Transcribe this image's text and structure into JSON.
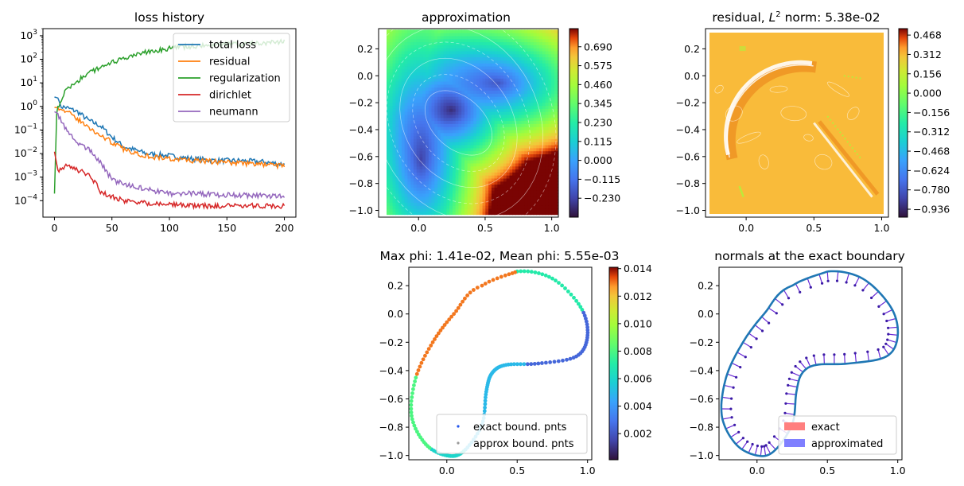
{
  "chart_data": [
    {
      "type": "line",
      "title": "loss history",
      "yscale": "log",
      "xlim": [
        -10,
        210
      ],
      "ylim": [
        2e-05,
        2000
      ],
      "xticks": [
        "0",
        "50",
        "100",
        "150",
        "200"
      ],
      "yticks": [
        "10^-4",
        "10^-3",
        "10^-2",
        "10^-1",
        "10^0",
        "10^1",
        "10^2",
        "10^3"
      ],
      "legend_position": "upper right",
      "series": [
        {
          "name": "total loss",
          "color": "#1f77b4",
          "x": [
            0,
            4,
            5,
            10,
            20,
            30,
            40,
            50,
            60,
            80,
            100,
            120,
            140,
            160,
            180,
            200
          ],
          "y": [
            2.5,
            2.2,
            1.0,
            0.9,
            0.6,
            0.25,
            0.15,
            0.05,
            0.02,
            0.01,
            0.008,
            0.006,
            0.005,
            0.005,
            0.0045,
            0.0035
          ]
        },
        {
          "name": "residual",
          "color": "#ff7f0e",
          "x": [
            0,
            5,
            10,
            20,
            30,
            40,
            50,
            60,
            80,
            100,
            120,
            140,
            160,
            180,
            200
          ],
          "y": [
            0.9,
            0.9,
            0.6,
            0.3,
            0.12,
            0.06,
            0.03,
            0.015,
            0.008,
            0.006,
            0.005,
            0.0045,
            0.004,
            0.0035,
            0.003
          ]
        },
        {
          "name": "regularization",
          "color": "#2ca02c",
          "x": [
            0,
            2,
            3,
            5,
            10,
            20,
            30,
            40,
            60,
            80,
            100,
            120,
            140,
            160,
            180,
            200
          ],
          "y": [
            0.0002,
            0.5,
            1.0,
            1.5,
            5,
            12,
            25,
            50,
            100,
            200,
            300,
            350,
            400,
            450,
            500,
            550
          ]
        },
        {
          "name": "dirichlet",
          "color": "#d62728",
          "x": [
            0,
            3,
            10,
            20,
            30,
            35,
            40,
            50,
            60,
            80,
            100,
            120,
            140,
            160,
            180,
            200
          ],
          "y": [
            0.012,
            0.002,
            0.003,
            0.002,
            0.0012,
            0.0006,
            0.00025,
            0.00015,
            0.0001,
            8e-05,
            7e-05,
            6e-05,
            6e-05,
            6e-05,
            6e-05,
            6e-05
          ]
        },
        {
          "name": "neumann",
          "color": "#9467bd",
          "x": [
            0,
            3,
            5,
            10,
            20,
            30,
            40,
            50,
            60,
            80,
            100,
            120,
            140,
            160,
            180,
            200
          ],
          "y": [
            0.6,
            0.5,
            0.3,
            0.1,
            0.03,
            0.015,
            0.004,
            0.0008,
            0.0005,
            0.0003,
            0.0002,
            0.0002,
            0.00018,
            0.00017,
            0.00016,
            0.00016
          ]
        }
      ]
    },
    {
      "type": "heatmap",
      "title": "approximation",
      "xlim": [
        -0.3,
        1.05
      ],
      "ylim": [
        -1.05,
        0.35
      ],
      "xticks": [
        "0.0",
        "0.5",
        "1.0"
      ],
      "yticks": [
        "0.2",
        "0.0",
        "−0.2",
        "−0.4",
        "−0.6",
        "−0.8",
        "−1.0"
      ],
      "colormap": "turbo",
      "clim": [
        -0.345,
        0.8
      ],
      "colorbar_ticks": [
        "0.690",
        "0.575",
        "0.460",
        "0.345",
        "0.230",
        "0.115",
        "0.000",
        "−0.115",
        "−0.230"
      ],
      "contour_lines": "white"
    },
    {
      "type": "heatmap",
      "title": "residual, L^2 norm: 5.38e-02",
      "title_parts": {
        "prefix": "residual, ",
        "L": "L",
        "sup": "2",
        "suffix": " norm: 5.38e-02"
      },
      "xlim": [
        -0.3,
        1.05
      ],
      "ylim": [
        -1.05,
        0.35
      ],
      "xticks": [
        "0.0",
        "0.5",
        "1.0"
      ],
      "yticks": [
        "0.2",
        "0.0",
        "−0.2",
        "−0.4",
        "−0.6",
        "−0.8",
        "−1.0"
      ],
      "colormap": "turbo",
      "clim": [
        -1.0,
        0.52
      ],
      "colorbar_ticks": [
        "0.468",
        "0.312",
        "0.156",
        "0.000",
        "−0.156",
        "−0.312",
        "−0.468",
        "−0.624",
        "−0.780",
        "−0.936"
      ],
      "background_value": 0.0
    },
    {
      "type": "scatter",
      "title": "Max phi: 1.41e-02, Mean phi: 5.55e-03",
      "xlim": [
        -0.27,
        1.03
      ],
      "ylim": [
        -1.03,
        0.33
      ],
      "xticks": [
        "0.0",
        "0.5",
        "1.0"
      ],
      "yticks": [
        "0.2",
        "0.0",
        "−0.2",
        "−0.4",
        "−0.6",
        "−0.8",
        "−1.0"
      ],
      "colormap": "turbo",
      "clim": [
        0.0001,
        0.0141
      ],
      "colorbar_ticks": [
        "0.014",
        "0.012",
        "0.010",
        "0.008",
        "0.006",
        "0.004",
        "0.002"
      ],
      "legend_position": "lower right",
      "series": [
        {
          "name": "exact bound. pnts",
          "color": "#2255ee"
        },
        {
          "name": "approx bound. pnts",
          "color": "#999999"
        }
      ]
    },
    {
      "type": "scatter",
      "title": "normals at the exact boundary",
      "xlim": [
        -0.27,
        1.03
      ],
      "ylim": [
        -1.03,
        0.33
      ],
      "xticks": [
        "0.0",
        "0.5",
        "1.0"
      ],
      "yticks": [
        "0.2",
        "0.0",
        "−0.2",
        "−0.4",
        "−0.6",
        "−0.8",
        "−1.0"
      ],
      "legend_position": "lower right",
      "boundary_color": "#1f77b4",
      "series": [
        {
          "name": "exact",
          "color": "#ff7f7f"
        },
        {
          "name": "approximated",
          "color": "#7f7fff"
        }
      ]
    }
  ]
}
